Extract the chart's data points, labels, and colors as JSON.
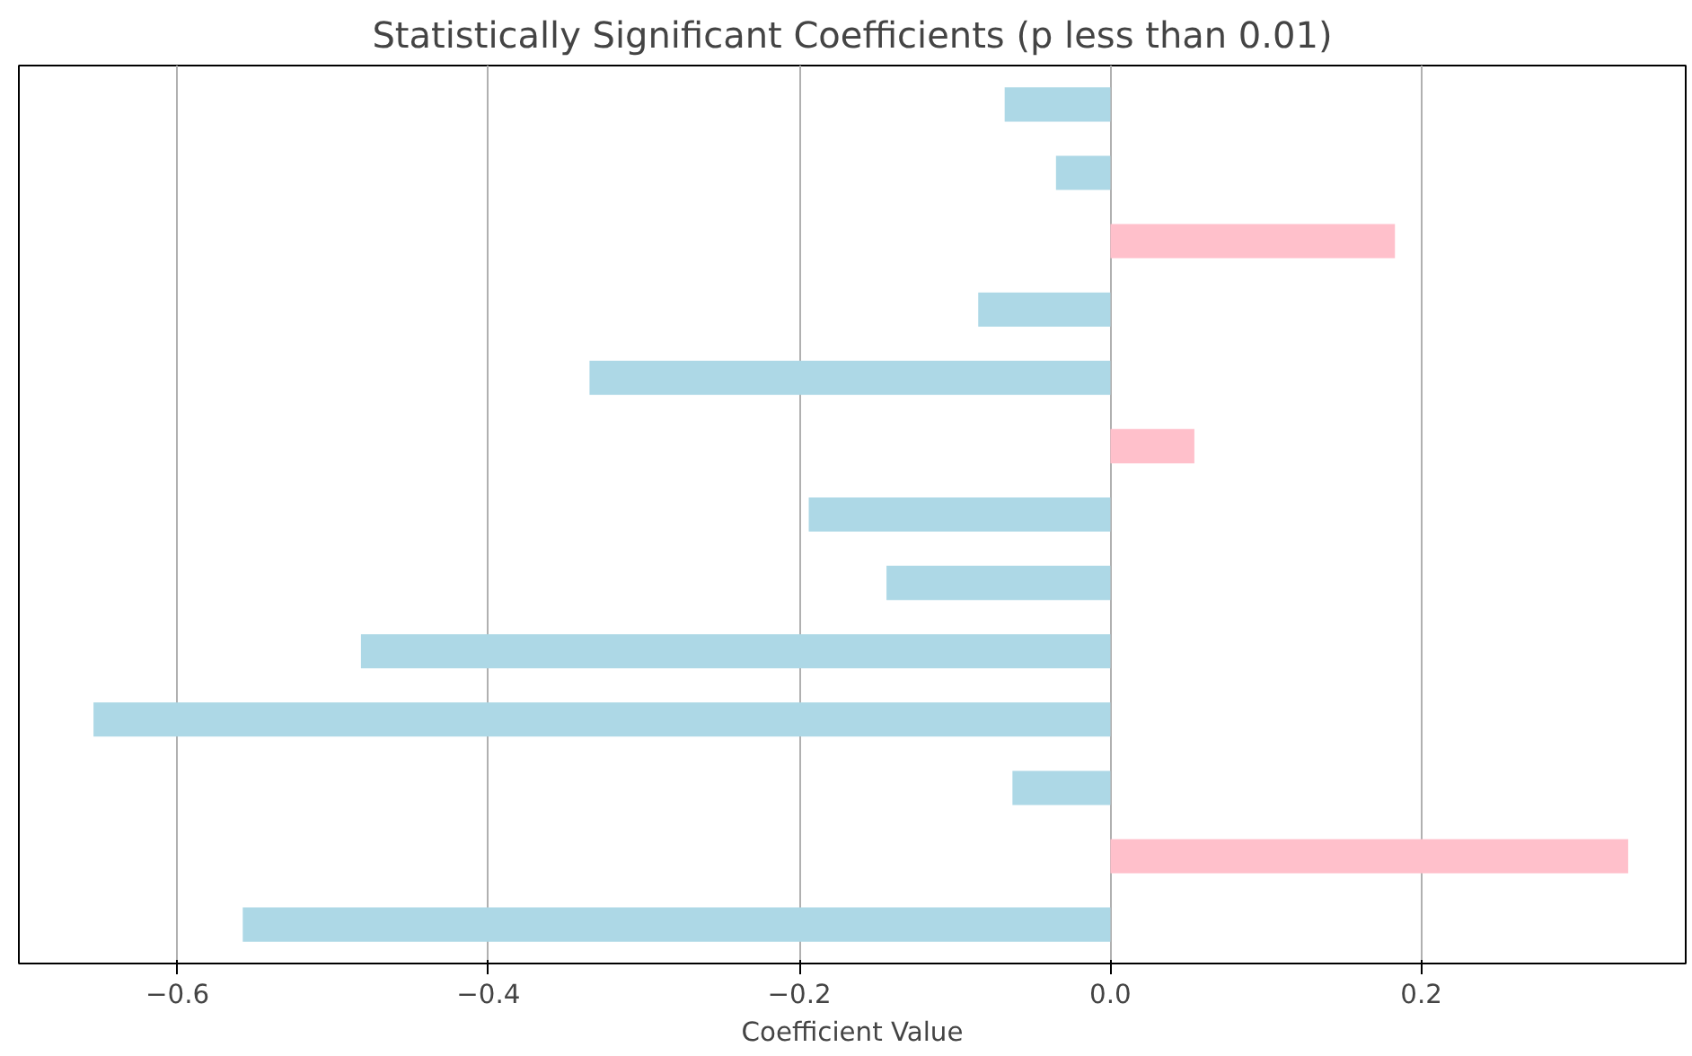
{
  "chart_data": {
    "type": "bar",
    "orientation": "horizontal",
    "title": "Statistically Significant Coefficients (p less than 0.01)",
    "xlabel": "Coefficient Value",
    "categories": [
      null,
      null,
      null,
      null,
      null,
      null,
      null,
      null,
      null,
      null,
      null,
      null,
      null
    ],
    "values": [
      -0.068,
      -0.035,
      0.183,
      -0.085,
      -0.335,
      0.054,
      -0.194,
      -0.144,
      -0.482,
      -0.654,
      -0.063,
      0.333,
      -0.558
    ],
    "colors": [
      "#add8e6",
      "#add8e6",
      "#ffc0cb",
      "#add8e6",
      "#add8e6",
      "#ffc0cb",
      "#add8e6",
      "#add8e6",
      "#add8e6",
      "#add8e6",
      "#add8e6",
      "#ffc0cb",
      "#add8e6"
    ],
    "xlim": [
      -0.702,
      0.37
    ],
    "xticks": [
      {
        "value": -0.6,
        "label": "−0.6"
      },
      {
        "value": -0.4,
        "label": "−0.4"
      },
      {
        "value": -0.2,
        "label": "−0.2"
      },
      {
        "value": 0.0,
        "label": "0.0"
      },
      {
        "value": 0.2,
        "label": "0.2"
      }
    ],
    "grid": "x",
    "tick_labels": "x"
  }
}
